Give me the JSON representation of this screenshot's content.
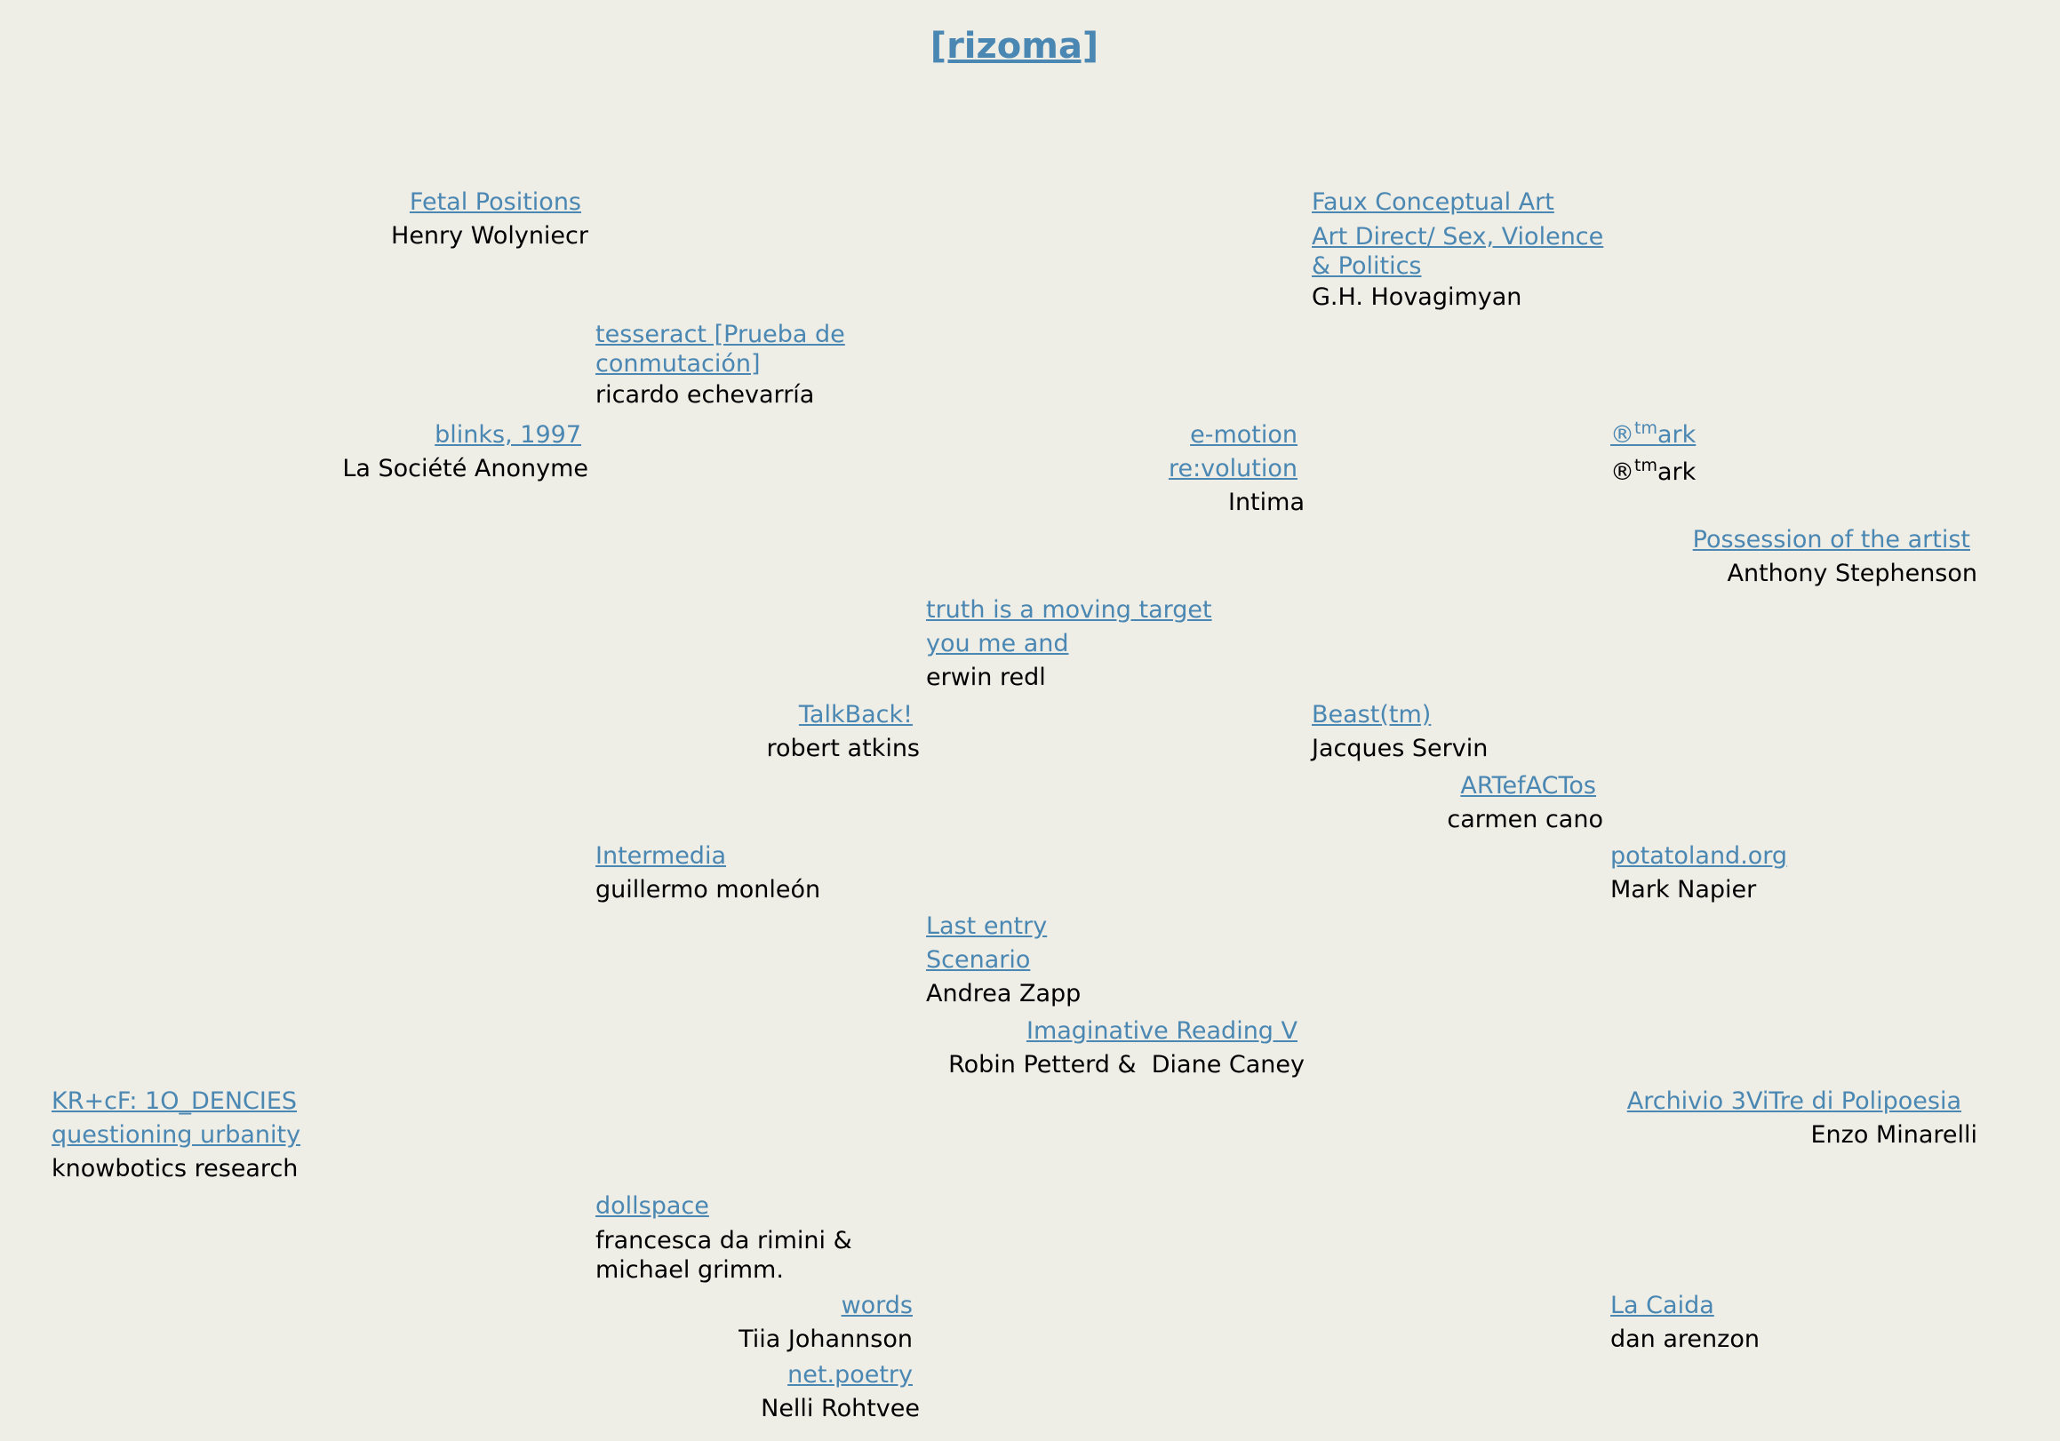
{
  "title": "[rizoma]",
  "entries": {
    "fetal": {
      "links": [
        "Fetal Positions"
      ],
      "author": "Henry Wolyniecr"
    },
    "faux": {
      "links": [
        "Faux Conceptual Art",
        "Art Direct/ Sex, Violence & Politics"
      ],
      "author": "G.H. Hovagimyan"
    },
    "tesseract": {
      "links": [
        "tesseract [Prueba de conmutación]"
      ],
      "author": "ricardo echevarría"
    },
    "blinks": {
      "links": [
        "blinks, 1997"
      ],
      "author": "La Société Anonyme"
    },
    "emotion": {
      "links": [
        "e-motion",
        "re:volution"
      ],
      "author": "Intima"
    },
    "rtmark": {
      "links": [
        "®tmark"
      ],
      "author": "®tmark"
    },
    "possession": {
      "links": [
        "Possession of the artist"
      ],
      "author": "Anthony Stephenson"
    },
    "truth": {
      "links": [
        "truth is a moving target",
        "you me and"
      ],
      "author": "erwin redl"
    },
    "talkback": {
      "links": [
        "TalkBack!"
      ],
      "author": "robert atkins"
    },
    "beast": {
      "links": [
        "Beast(tm)"
      ],
      "author": "Jacques Servin"
    },
    "artefactos": {
      "links": [
        "ARTefACTos"
      ],
      "author": "carmen cano"
    },
    "intermedia": {
      "links": [
        "Intermedia"
      ],
      "author": "guillermo monleón"
    },
    "potatoland": {
      "links": [
        "potatoland.org"
      ],
      "author": "Mark Napier"
    },
    "lastentry": {
      "links": [
        "Last entry",
        "Scenario"
      ],
      "author": "Andrea Zapp"
    },
    "imaginative": {
      "links": [
        "Imaginative Reading V"
      ],
      "author": "Robin Petterd &  Diane Caney"
    },
    "krcf": {
      "links": [
        "KR+cF: 1O_DENCIES",
        "questioning urbanity"
      ],
      "author": "knowbotics research"
    },
    "archivio": {
      "links": [
        "Archivio 3ViTre di Polipoesia"
      ],
      "author": "Enzo Minarelli"
    },
    "dollspace": {
      "links": [
        "dollspace"
      ],
      "author": "francesca da rimini & michael grimm."
    },
    "words": {
      "links": [
        "words"
      ],
      "author": "Tiia Johannson"
    },
    "lacaida": {
      "links": [
        "La Caida"
      ],
      "author": "dan arenzon"
    },
    "netpoetry": {
      "links": [
        "net.poetry"
      ],
      "author": "Nelli Rohtvee"
    }
  },
  "colors": {
    "link": "#4a87b2",
    "background": "#eeede6",
    "text": "#000000"
  }
}
